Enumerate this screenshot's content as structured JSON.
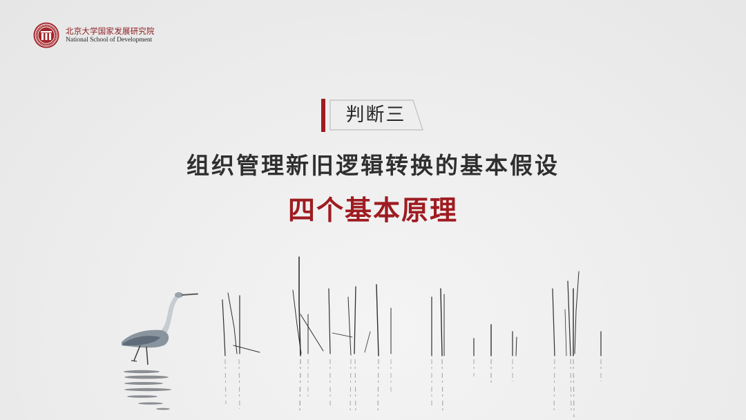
{
  "logo": {
    "name_cn": "北京大学国家发展研究院",
    "name_en": "National School of Development",
    "icon": "pku-emblem"
  },
  "tag": {
    "label": "判断三"
  },
  "heading": {
    "title": "组织管理新旧逻辑转换的基本假设",
    "subtitle": "四个基本原理"
  },
  "colors": {
    "accent": "#9e1c21",
    "text": "#2f2f2f",
    "background": "#ececec"
  }
}
